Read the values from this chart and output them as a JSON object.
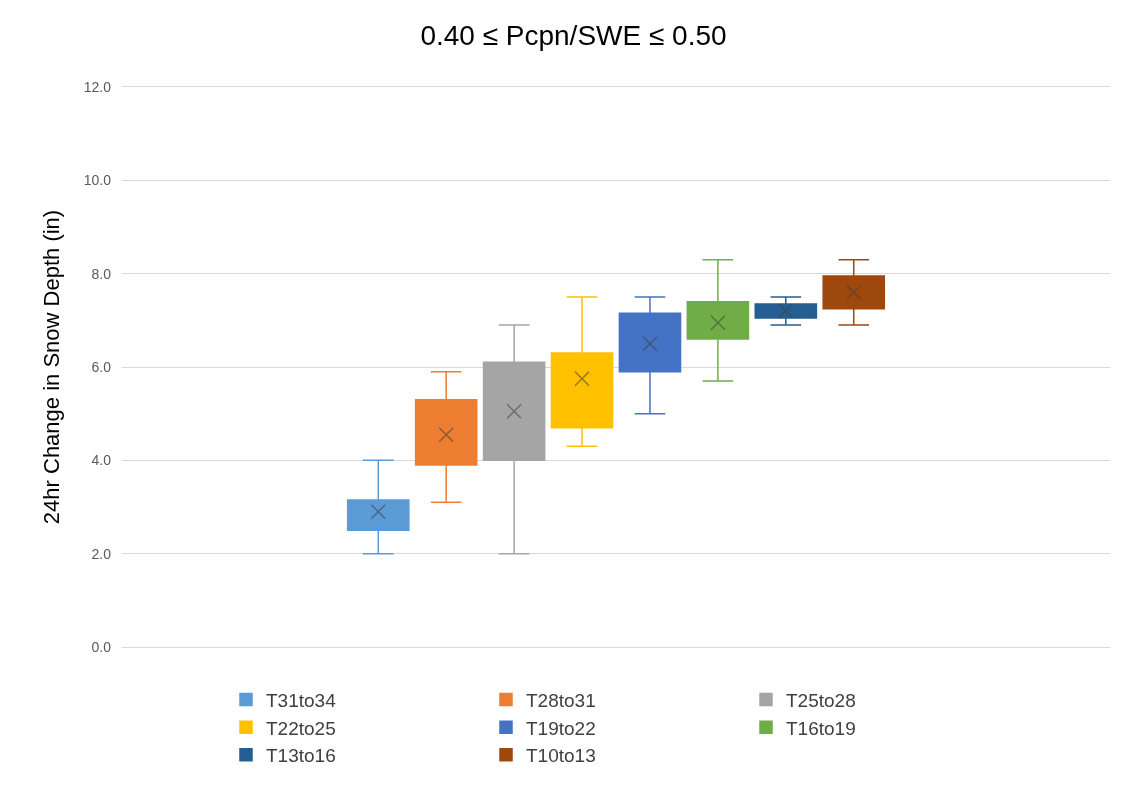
{
  "chart_data": {
    "type": "box",
    "title": "0.40 ≤ Pcpn/SWE ≤ 0.50",
    "ylabel": "24hr Change in Snow Depth (in)",
    "categories": [
      null
    ],
    "ylim": [
      0,
      12
    ],
    "yticks": [
      {
        "value": 0,
        "label": "0.0"
      },
      {
        "value": 2,
        "label": "2.0"
      },
      {
        "value": 4,
        "label": "4.0"
      },
      {
        "value": 6,
        "label": "6.0"
      },
      {
        "value": 8,
        "label": "8.0"
      },
      {
        "value": 10,
        "label": "10.0"
      },
      {
        "value": 12,
        "label": "12.0"
      }
    ],
    "grid": "y",
    "legend": "bottom",
    "marker": "cross",
    "series": [
      {
        "name": "T31to34",
        "color": "#5b9bd5",
        "boxes": [
          {
            "low": 2.0,
            "q1": 2.5,
            "median": 2.85,
            "q3": 3.15,
            "high": 4.0,
            "mean": 2.9
          }
        ]
      },
      {
        "name": "T28to31",
        "color": "#ed7d31",
        "boxes": [
          {
            "low": 3.1,
            "q1": 3.9,
            "median": 4.5,
            "q3": 5.3,
            "high": 5.9,
            "mean": 4.55
          }
        ]
      },
      {
        "name": "T25to28",
        "color": "#a5a5a5",
        "boxes": [
          {
            "low": 2.0,
            "q1": 4.0,
            "median": 5.1,
            "q3": 6.1,
            "high": 6.9,
            "mean": 5.05
          }
        ]
      },
      {
        "name": "T22to25",
        "color": "#ffc000",
        "boxes": [
          {
            "low": 4.3,
            "q1": 4.7,
            "median": 5.9,
            "q3": 6.3,
            "high": 7.5,
            "mean": 5.75
          }
        ]
      },
      {
        "name": "T19to22",
        "color": "#4472c4",
        "boxes": [
          {
            "low": 5.0,
            "q1": 5.9,
            "median": 6.5,
            "q3": 7.15,
            "high": 7.5,
            "mean": 6.5
          }
        ]
      },
      {
        "name": "T16to19",
        "color": "#70ad47",
        "boxes": [
          {
            "low": 5.7,
            "q1": 6.6,
            "median": 6.7,
            "q3": 7.4,
            "high": 8.3,
            "mean": 6.95
          }
        ]
      },
      {
        "name": "T13to16",
        "color": "#255e91",
        "boxes": [
          {
            "low": 6.9,
            "q1": 7.05,
            "median": 7.2,
            "q3": 7.35,
            "high": 7.5,
            "mean": 7.2
          }
        ]
      },
      {
        "name": "T10to13",
        "color": "#9e480e",
        "boxes": [
          {
            "low": 6.9,
            "q1": 7.25,
            "median": 7.6,
            "q3": 7.95,
            "high": 8.3,
            "mean": 7.6
          }
        ]
      }
    ]
  }
}
